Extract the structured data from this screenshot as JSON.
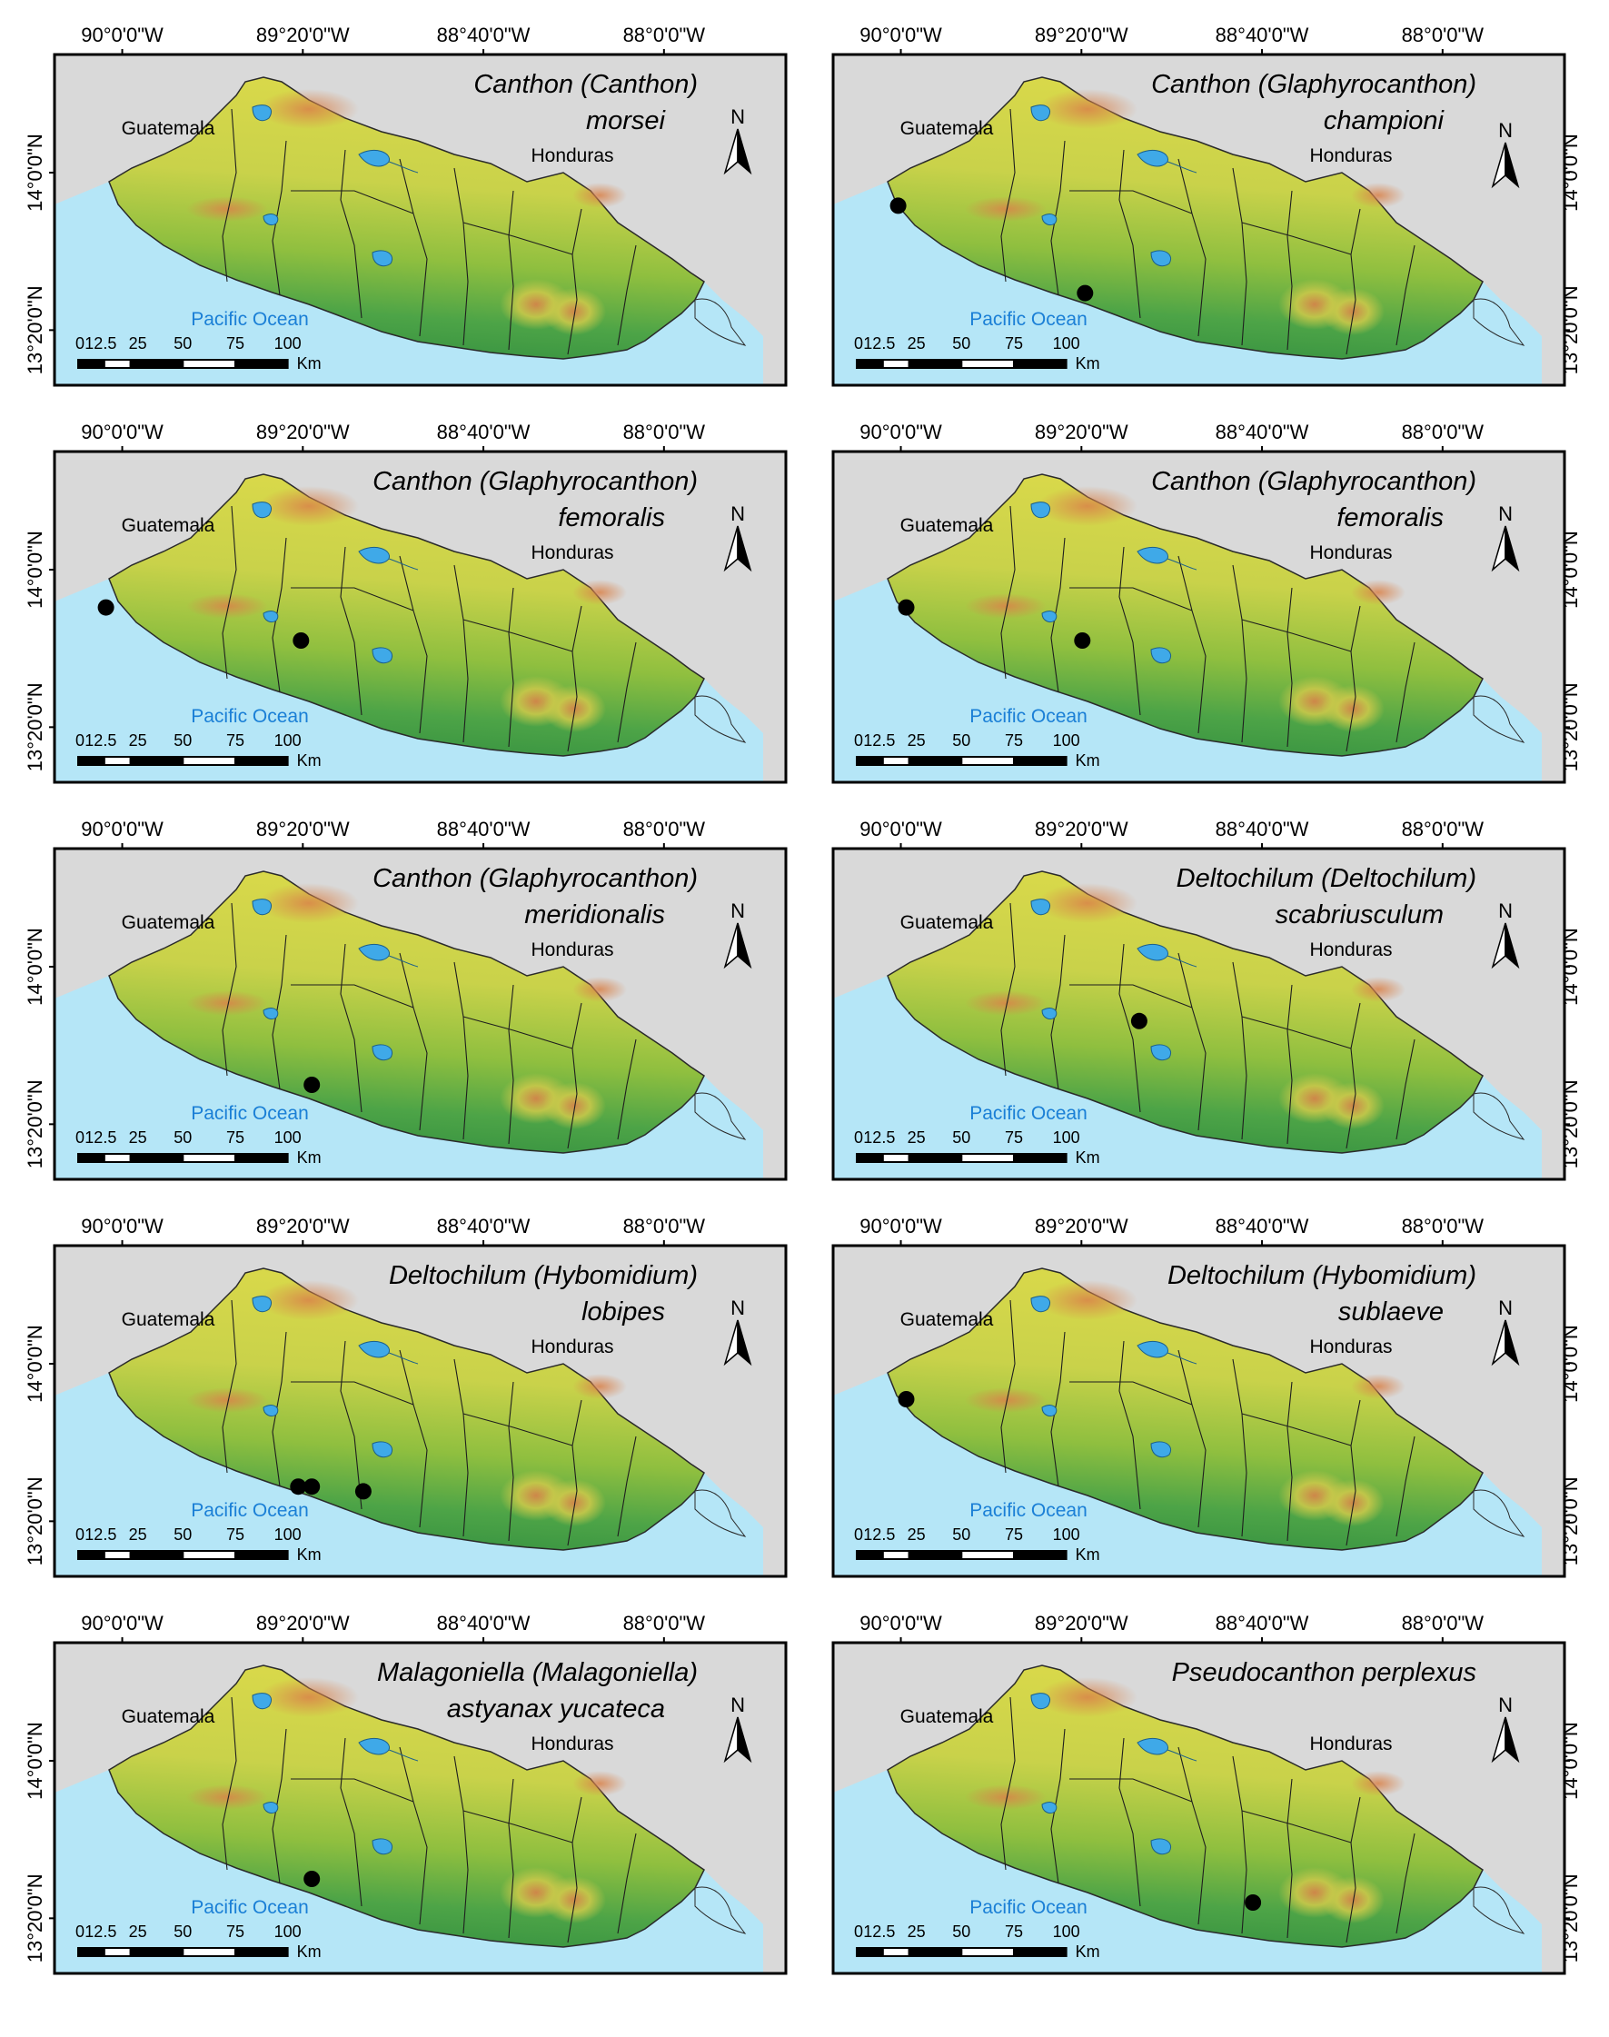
{
  "figure": {
    "lon_labels": [
      "90°0'0\"W",
      "89°20'0\"W",
      "88°40'0\"W",
      "88°0'0\"W"
    ],
    "lat_labels": [
      "14°0'0\"N",
      "13°20'0\"N"
    ],
    "place_labels": {
      "guatemala": "Guatemala",
      "honduras": "Honduras",
      "ocean": "Pacific Ocean"
    },
    "north_arrow_label": "N",
    "scale_bar": {
      "ticks": [
        "0",
        "12.5",
        "25",
        "50",
        "75",
        "100"
      ],
      "unit": "Km"
    },
    "colors": {
      "ocean": "#b5e6f7",
      "land_outside": "#d9d9d9",
      "lowland": "#2e8b3e",
      "midland": "#8fbf3f",
      "highland": "#d8d84a",
      "peak": "#d9824a",
      "lake": "#3fa9e8",
      "record": "#000000"
    },
    "panels": [
      {
        "id": "a",
        "title_line1": "Canthon (Canthon)",
        "title_line2": "morsei",
        "records": []
      },
      {
        "id": "b",
        "title_line1": "Canthon (Glaphyrocanthon)",
        "title_line2": "championi",
        "records": [
          {
            "lon": -90.01,
            "lat": 13.86
          },
          {
            "lon": -89.32,
            "lat": 13.49
          }
        ]
      },
      {
        "id": "c",
        "title_line1": "Canthon (Glaphyrocanthon)",
        "title_line2": "femoralis",
        "records": [
          {
            "lon": -90.06,
            "lat": 13.84
          },
          {
            "lon": -89.34,
            "lat": 13.7
          }
        ]
      },
      {
        "id": "d",
        "title_line1": "Canthon (Glaphyrocanthon)",
        "title_line2": "femoralis",
        "records": [
          {
            "lon": -89.98,
            "lat": 13.84
          },
          {
            "lon": -89.33,
            "lat": 13.7
          }
        ]
      },
      {
        "id": "e",
        "title_line1": "Canthon (Glaphyrocanthon)",
        "title_line2": "meridionalis",
        "records": [
          {
            "lon": -89.3,
            "lat": 13.5
          }
        ]
      },
      {
        "id": "f",
        "title_line1": "Deltochilum (Deltochilum)",
        "title_line2": "scabriusculum",
        "records": [
          {
            "lon": -89.12,
            "lat": 13.77
          }
        ]
      },
      {
        "id": "g",
        "title_line1": "Deltochilum (Hybomidium)",
        "title_line2": "lobipes",
        "records": [
          {
            "lon": -89.35,
            "lat": 13.48
          },
          {
            "lon": -89.3,
            "lat": 13.48
          },
          {
            "lon": -89.11,
            "lat": 13.46
          }
        ]
      },
      {
        "id": "h",
        "title_line1": "Deltochilum (Hybomidium)",
        "title_line2": "sublaeve",
        "records": [
          {
            "lon": -89.98,
            "lat": 13.85
          }
        ]
      },
      {
        "id": "i",
        "title_line1": "Malagoniella (Malagoniella)",
        "title_line2": "astyanax yucateca",
        "records": [
          {
            "lon": -89.3,
            "lat": 13.5
          }
        ]
      },
      {
        "id": "j",
        "title_line1": "Pseudocanthon perplexus",
        "title_line2": "",
        "records": [
          {
            "lon": -88.7,
            "lat": 13.4
          }
        ]
      }
    ]
  }
}
